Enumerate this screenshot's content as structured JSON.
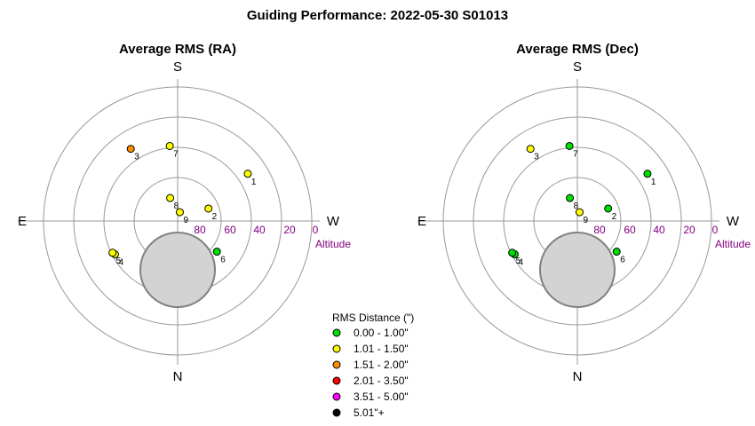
{
  "title": "Guiding Performance: 2022-05-30 S01013",
  "chart_data": [
    {
      "type": "scatter",
      "projection": "polar-altaz",
      "title": "Average RMS (RA)",
      "compass": {
        "north": "N",
        "south": "S",
        "east": "E",
        "west": "W"
      },
      "altitude_label": "Altitude",
      "altitude_ticks": [
        "80",
        "60",
        "40",
        "20",
        "0"
      ],
      "altitude_range": [
        0,
        90
      ],
      "grid": true,
      "points": [
        {
          "label": "1",
          "azimuth": 236,
          "altitude": 34,
          "category": 1
        },
        {
          "label": "2",
          "azimuth": 248,
          "altitude": 68,
          "category": 1
        },
        {
          "label": "3",
          "azimuth": 147,
          "altitude": 33,
          "category": 2
        },
        {
          "label": "4",
          "azimuth": 62,
          "altitude": 43,
          "category": 1
        },
        {
          "label": "5",
          "azimuth": 64,
          "altitude": 42,
          "category": 1
        },
        {
          "label": "6",
          "azimuth": 308,
          "altitude": 57,
          "category": 0
        },
        {
          "label": "7",
          "azimuth": 174,
          "altitude": 40,
          "category": 1
        },
        {
          "label": "8",
          "azimuth": 162,
          "altitude": 74,
          "category": 1
        },
        {
          "label": "9",
          "azimuth": 194,
          "altitude": 84,
          "category": 1
        }
      ]
    },
    {
      "type": "scatter",
      "projection": "polar-altaz",
      "title": "Average RMS (Dec)",
      "compass": {
        "north": "N",
        "south": "S",
        "east": "E",
        "west": "W"
      },
      "altitude_label": "Altitude",
      "altitude_ticks": [
        "80",
        "60",
        "40",
        "20",
        "0"
      ],
      "altitude_range": [
        0,
        90
      ],
      "grid": true,
      "points": [
        {
          "label": "1",
          "azimuth": 236,
          "altitude": 34,
          "category": 0
        },
        {
          "label": "2",
          "azimuth": 248,
          "altitude": 68,
          "category": 0
        },
        {
          "label": "3",
          "azimuth": 147,
          "altitude": 33,
          "category": 1
        },
        {
          "label": "4",
          "azimuth": 62,
          "altitude": 43,
          "category": 0
        },
        {
          "label": "5",
          "azimuth": 64,
          "altitude": 42,
          "category": 0
        },
        {
          "label": "6",
          "azimuth": 308,
          "altitude": 57,
          "category": 0
        },
        {
          "label": "7",
          "azimuth": 174,
          "altitude": 40,
          "category": 0
        },
        {
          "label": "8",
          "azimuth": 162,
          "altitude": 74,
          "category": 0
        },
        {
          "label": "9",
          "azimuth": 194,
          "altitude": 84,
          "category": 1
        }
      ]
    }
  ],
  "legend": {
    "title": "RMS Distance (\")",
    "placement": "bottom-center",
    "items": [
      {
        "label": "0.00 - 1.00\"",
        "color": "#00e000"
      },
      {
        "label": "1.01 - 1.50\"",
        "color": "#ffff00"
      },
      {
        "label": "1.51 - 2.00\"",
        "color": "#ff8c00"
      },
      {
        "label": "2.01 - 3.50\"",
        "color": "#ff0000"
      },
      {
        "label": "3.51 - 5.00\"",
        "color": "#ff00ff"
      },
      {
        "label": "5.01\"+",
        "color": "#000000"
      }
    ]
  },
  "colors": {
    "grid": "#999999",
    "altitude_text": "#800080",
    "zenith_fill": "#d3d3d3",
    "zenith_stroke": "#808080"
  }
}
